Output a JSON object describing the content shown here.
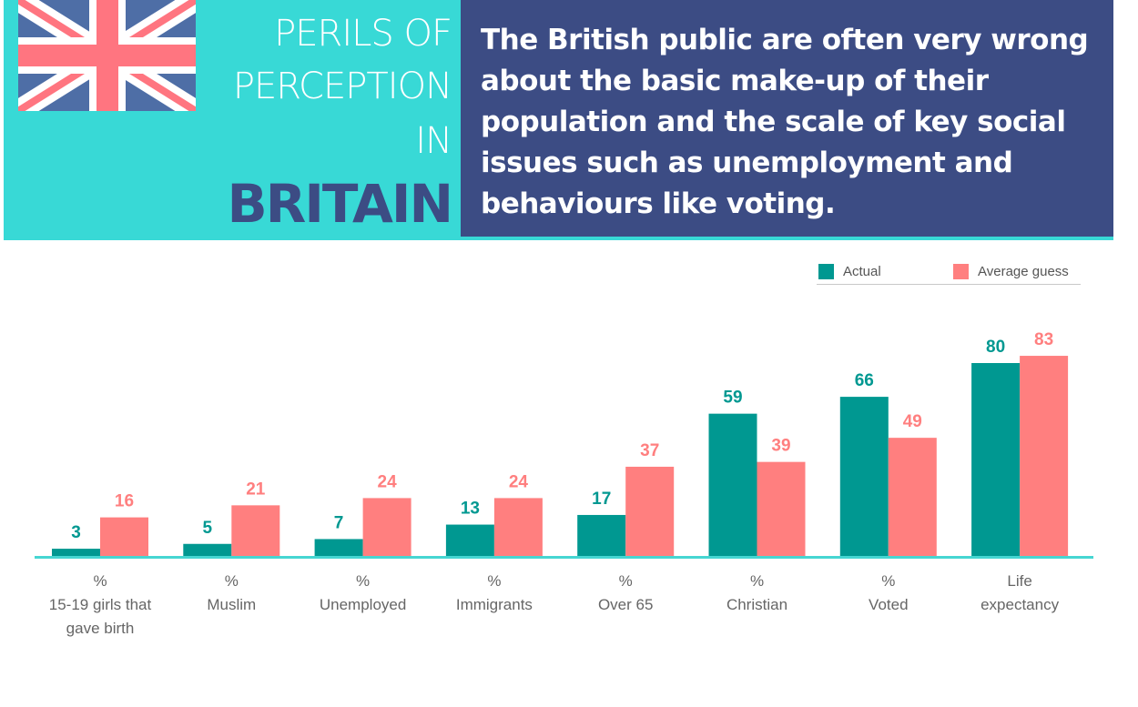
{
  "header": {
    "title_lines": [
      "PERILS OF",
      "PERCEPTION",
      "IN",
      "BRITAIN"
    ],
    "subtitle": "The British public are often very wrong about the basic make-up of their population and the scale of key social issues such as unemployment and behaviours like voting.",
    "flag_icon": "union-jack-flag"
  },
  "colors": {
    "actual": "#009891",
    "guess": "#ff7f7f",
    "header_left": "#38d9d6",
    "header_right": "#3c4c84",
    "axis": "#46d6d2"
  },
  "chart_data": {
    "type": "bar",
    "title": "",
    "xlabel": "",
    "ylabel": "",
    "ylim": [
      0,
      100
    ],
    "grid": false,
    "legend_position": "top-right",
    "categories": [
      [
        "%",
        "15-19 girls that",
        "gave birth"
      ],
      [
        "%",
        "Muslim"
      ],
      [
        "%",
        "Unemployed"
      ],
      [
        "%",
        "Immigrants"
      ],
      [
        "%",
        "Over 65"
      ],
      [
        "%",
        "Christian"
      ],
      [
        "%",
        "Voted"
      ],
      [
        "Life",
        "expectancy"
      ]
    ],
    "series": [
      {
        "name": "Actual",
        "values": [
          3,
          5,
          7,
          13,
          17,
          59,
          66,
          80
        ]
      },
      {
        "name": "Average guess",
        "values": [
          16,
          21,
          24,
          24,
          37,
          39,
          49,
          83
        ]
      }
    ]
  }
}
